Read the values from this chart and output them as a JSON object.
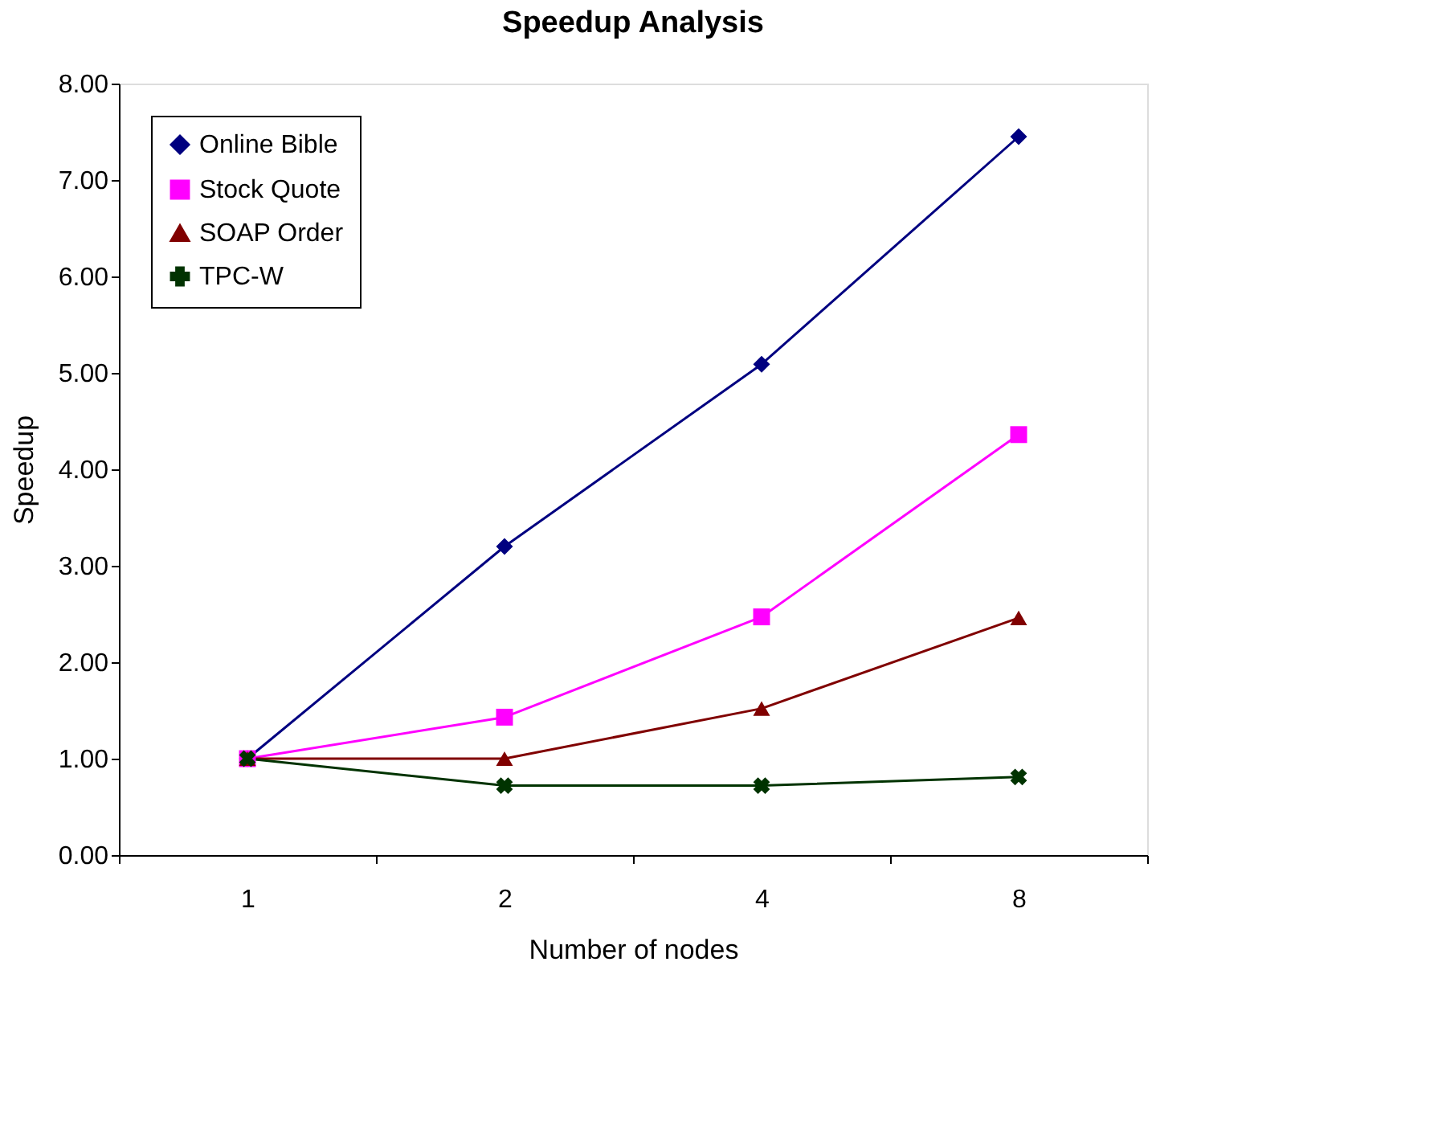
{
  "chart_data": {
    "type": "line",
    "title": "Speedup Analysis",
    "xlabel": "Number of nodes",
    "ylabel": "Speedup",
    "categories": [
      "1",
      "2",
      "4",
      "8"
    ],
    "series": [
      {
        "name": "Online Bible",
        "color": "#000080",
        "marker": "diamond",
        "values": [
          1.0,
          3.2,
          5.09,
          7.45
        ]
      },
      {
        "name": "Stock Quote",
        "color": "#ff00ff",
        "marker": "square",
        "values": [
          1.0,
          1.43,
          2.47,
          4.36
        ]
      },
      {
        "name": "SOAP Order",
        "color": "#800000",
        "marker": "triangle",
        "values": [
          1.0,
          1.0,
          1.52,
          2.46
        ]
      },
      {
        "name": "TPC-W",
        "color": "#003300",
        "marker": "cross",
        "values": [
          1.0,
          0.72,
          0.72,
          0.81
        ]
      }
    ],
    "ylim": [
      0,
      8
    ],
    "yticks": [
      {
        "value": 0,
        "label": "0.00"
      },
      {
        "value": 1,
        "label": "1.00"
      },
      {
        "value": 2,
        "label": "2.00"
      },
      {
        "value": 3,
        "label": "3.00"
      },
      {
        "value": 4,
        "label": "4.00"
      },
      {
        "value": 5,
        "label": "5.00"
      },
      {
        "value": 6,
        "label": "6.00"
      },
      {
        "value": 7,
        "label": "7.00"
      },
      {
        "value": 8,
        "label": "8.00"
      }
    ],
    "grid": false,
    "legend": "top left",
    "line_style": "solid"
  }
}
